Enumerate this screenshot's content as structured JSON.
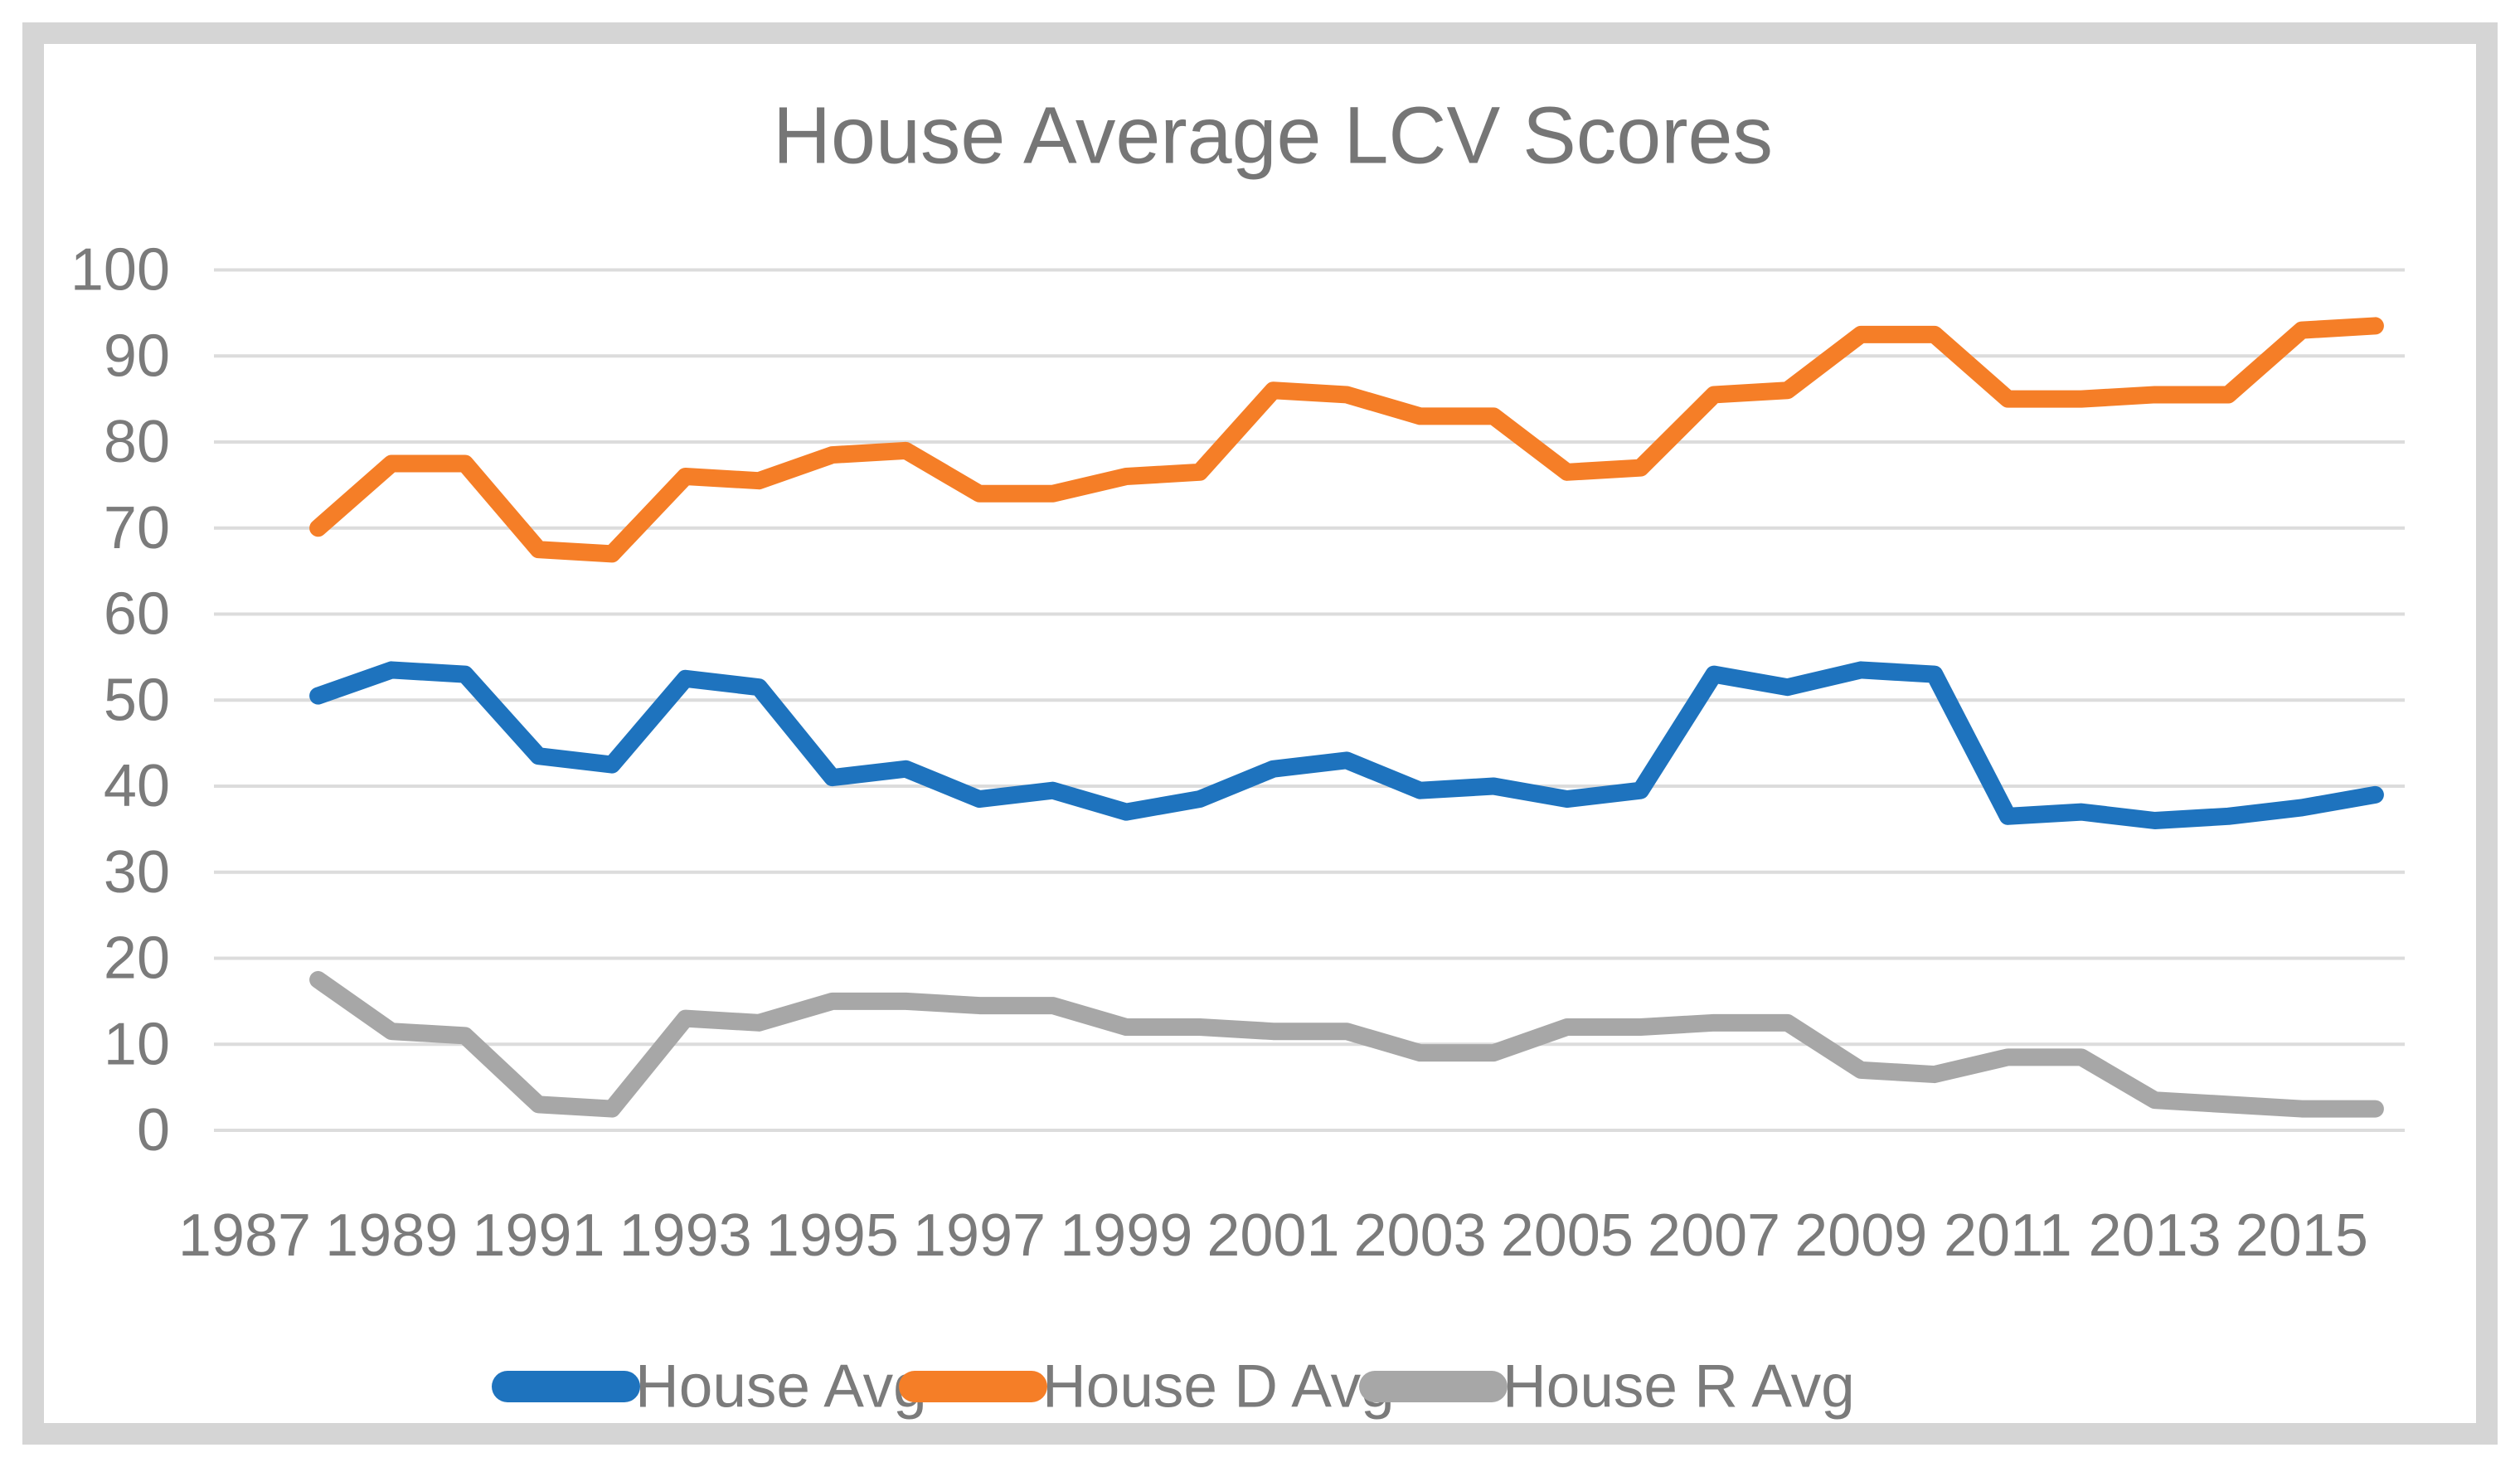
{
  "title": "House Average LCV Scores",
  "colors": {
    "title_text": "#767676",
    "axis_text": "#7b7b7b",
    "gridline": "#dcdcdc",
    "border": "#d5d5d5",
    "background": "#ffffff",
    "series_blue": "#1e73be",
    "series_orange": "#f57e27",
    "series_gray": "#a7a7a7"
  },
  "chart_data": {
    "type": "line",
    "title": "House Average LCV Scores",
    "xlabel": "",
    "ylabel": "",
    "ylim": [
      0,
      100
    ],
    "y_ticks": [
      0,
      10,
      20,
      30,
      40,
      50,
      60,
      70,
      80,
      90,
      100
    ],
    "x_tick_labels": [
      "1987",
      "1989",
      "1991",
      "1993",
      "1995",
      "1997",
      "1999",
      "2001",
      "2003",
      "2005",
      "2007",
      "2009",
      "2011",
      "2013",
      "2015"
    ],
    "x_years": [
      1988,
      1989,
      1990,
      1991,
      1992,
      1993,
      1994,
      1995,
      1996,
      1997,
      1998,
      1999,
      2000,
      2001,
      2002,
      2003,
      2004,
      2005,
      2006,
      2007,
      2008,
      2009,
      2010,
      2011,
      2012,
      2013,
      2014,
      2015,
      2016
    ],
    "grid": "horizontal",
    "legend_position": "bottom",
    "series": [
      {
        "name": "House Avg",
        "color": "#1e73be",
        "values": [
          50.5,
          53.5,
          53,
          43.5,
          42.5,
          52.5,
          51.5,
          41,
          42,
          38.5,
          39.5,
          37,
          38.5,
          42,
          43,
          39.5,
          40,
          38.5,
          39.5,
          53,
          51.5,
          53.5,
          53,
          36.5,
          37,
          36,
          36.5,
          37.5,
          39
        ]
      },
      {
        "name": "House D Avg",
        "color": "#f57e27",
        "values": [
          70,
          77.5,
          77.5,
          67.5,
          67,
          76,
          75.5,
          78.5,
          79,
          74,
          74,
          76,
          76.5,
          86,
          85.5,
          83,
          83,
          76.5,
          77,
          85.5,
          86,
          92.5,
          92.5,
          85,
          85,
          85.5,
          85.5,
          93,
          93.5
        ]
      },
      {
        "name": "House R Avg",
        "color": "#a7a7a7",
        "values": [
          17.5,
          11.5,
          11,
          3,
          2.5,
          13,
          12.5,
          15,
          15,
          14.5,
          14.5,
          12,
          12,
          11.5,
          11.5,
          9,
          9,
          12,
          12,
          12.5,
          12.5,
          7,
          6.5,
          8.5,
          8.5,
          3.5,
          3,
          2.5,
          2.5
        ]
      }
    ]
  }
}
